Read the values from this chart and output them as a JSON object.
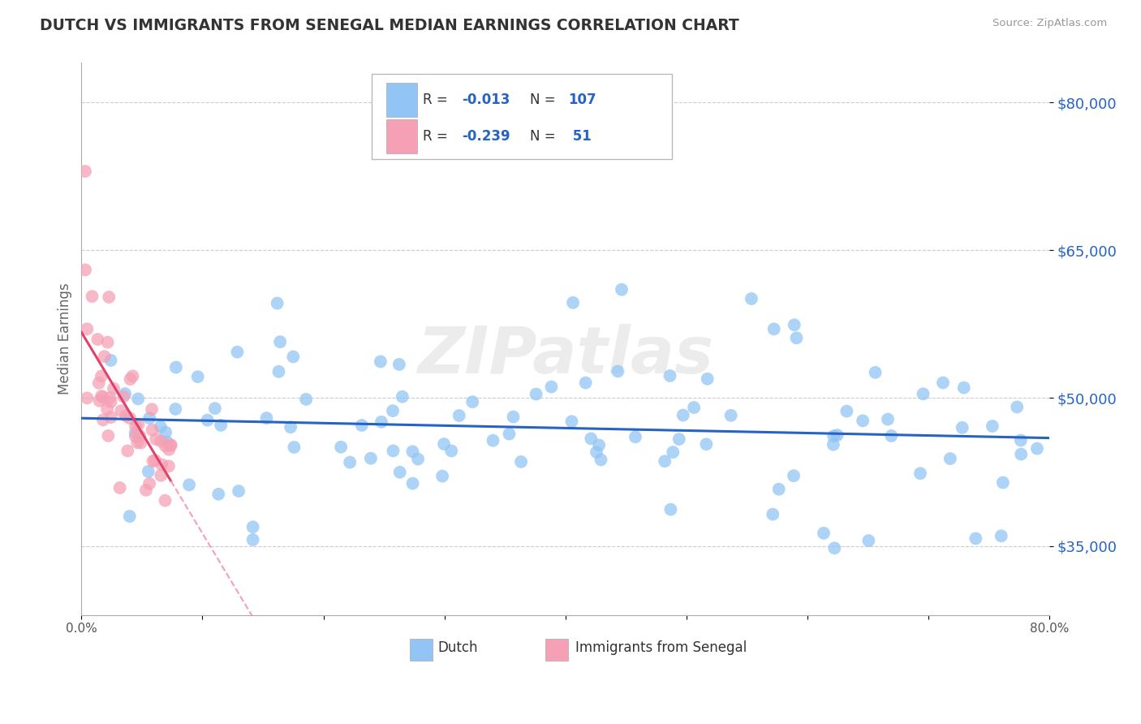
{
  "title": "DUTCH VS IMMIGRANTS FROM SENEGAL MEDIAN EARNINGS CORRELATION CHART",
  "source": "Source: ZipAtlas.com",
  "ylabel": "Median Earnings",
  "xlim": [
    0.0,
    0.8
  ],
  "ylim": [
    28000,
    84000
  ],
  "yticks": [
    35000,
    50000,
    65000,
    80000
  ],
  "ytick_labels": [
    "$35,000",
    "$50,000",
    "$65,000",
    "$80,000"
  ],
  "xticks": [
    0.0,
    0.1,
    0.2,
    0.3,
    0.4,
    0.5,
    0.6,
    0.7,
    0.8
  ],
  "xtick_labels": [
    "0.0%",
    "",
    "",
    "",
    "",
    "",
    "",
    "",
    "80.0%"
  ],
  "dutch_color": "#92C5F5",
  "senegal_color": "#F5A0B5",
  "dutch_line_color": "#2563C4",
  "senegal_line_color": "#E0436A",
  "senegal_line_dashed_color": "#F5A0B5",
  "legend_dutch": "Dutch",
  "legend_senegal": "Immigrants from Senegal",
  "R_dutch": -0.013,
  "N_dutch": 107,
  "R_senegal": -0.239,
  "N_senegal": 51,
  "watermark": "ZIPatlas",
  "background_color": "#FFFFFF",
  "grid_color": "#CCCCCC",
  "title_color": "#333333"
}
